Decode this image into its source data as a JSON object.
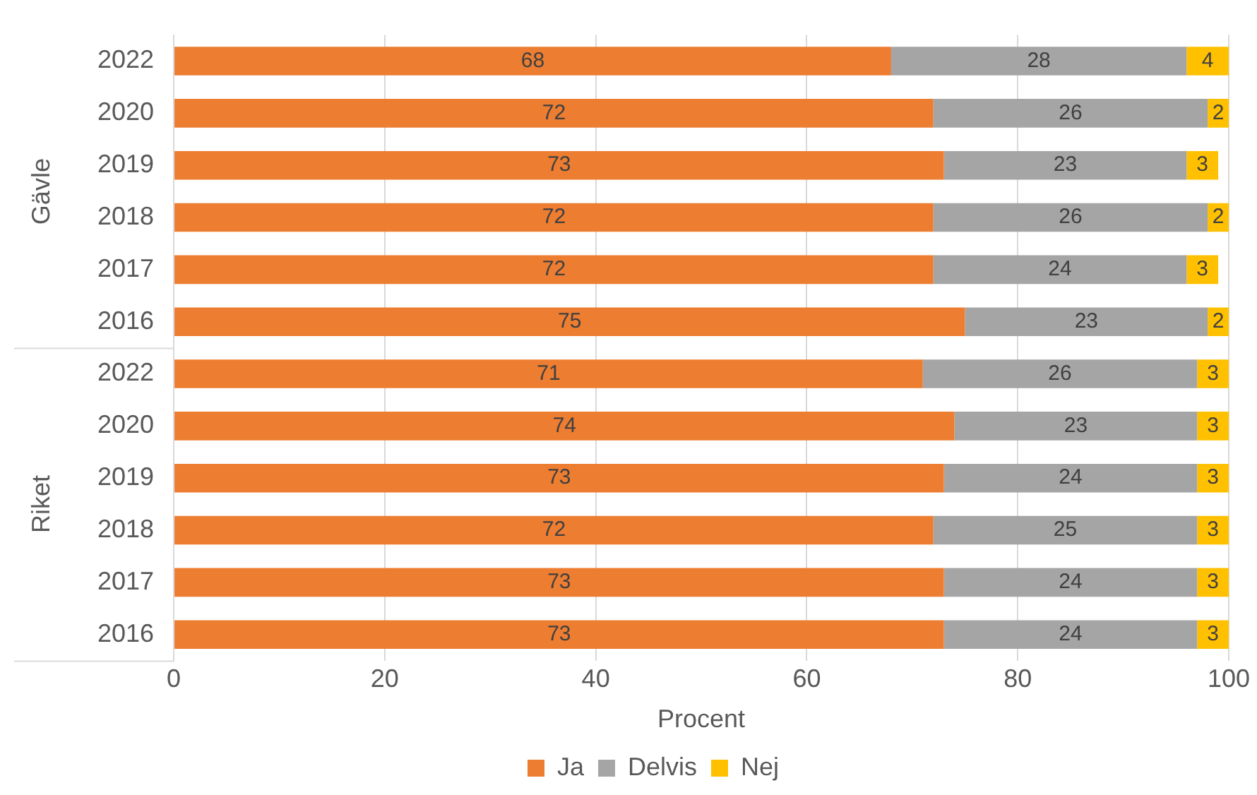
{
  "chart_data": {
    "type": "bar",
    "orientation": "horizontal",
    "stacked": true,
    "categories": [
      "2022",
      "2020",
      "2019",
      "2018",
      "2017",
      "2016",
      "2022",
      "2020",
      "2019",
      "2018",
      "2017",
      "2016"
    ],
    "annotations": [
      "Gävle",
      "Riket"
    ],
    "series": [
      {
        "name": "Ja",
        "color": "#ed7d31",
        "values": [
          68,
          72,
          73,
          72,
          72,
          75,
          71,
          74,
          73,
          72,
          73,
          73
        ]
      },
      {
        "name": "Delvis",
        "color": "#a5a5a5",
        "values": [
          28,
          26,
          23,
          26,
          24,
          23,
          26,
          23,
          24,
          25,
          24,
          24
        ]
      },
      {
        "name": "Nej",
        "color": "#ffc000",
        "values": [
          4,
          2,
          3,
          2,
          3,
          2,
          3,
          3,
          3,
          3,
          3,
          3
        ]
      }
    ],
    "xlabel": "Procent",
    "xlim": [
      0,
      100
    ],
    "xticks": [
      0,
      20,
      40,
      60,
      80,
      100
    ],
    "grid": "x",
    "legend": "bottom",
    "data_labels": true
  }
}
